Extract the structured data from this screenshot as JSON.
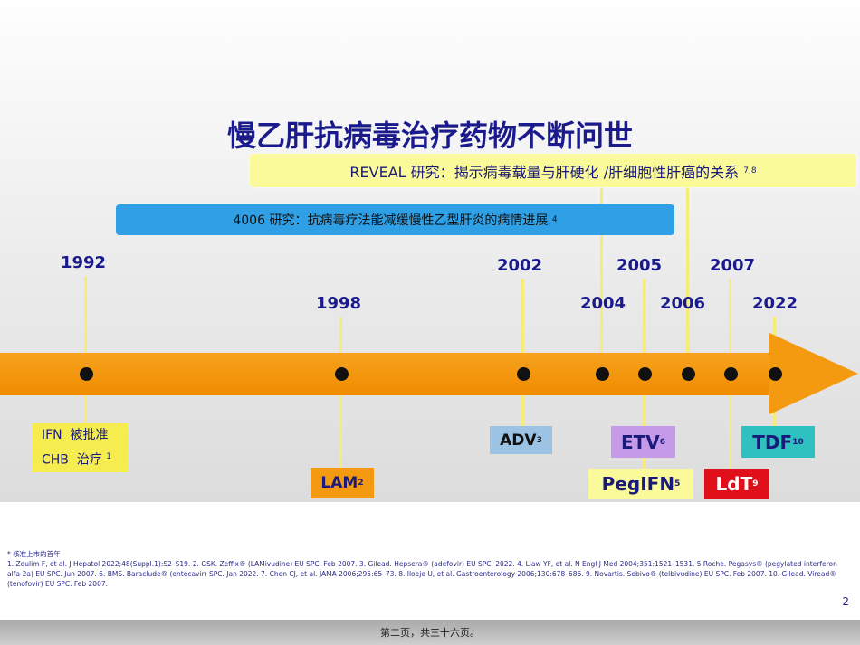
{
  "title": "慢乙肝抗病毒治疗药物不断问世",
  "studies": {
    "reveal": "REVEAL 研究：揭示病毒载量与肝硬化 /肝细胞性肝癌的关系",
    "reveal_sup": "7,8",
    "s4006": "4006 研究：抗病毒疗法能减缓慢性乙型肝炎的病情进展",
    "s4006_sup": "4"
  },
  "years": [
    "1992",
    "1998",
    "2002",
    "2004",
    "2005",
    "2006",
    "2007",
    "2022"
  ],
  "drugs": {
    "ifn_line1": "IFN  被批准",
    "ifn_line2": "CHB  治疗",
    "ifn_sup": "1",
    "lam": "LAM",
    "lam_sup": "2",
    "adv": "ADV",
    "adv_sup": "3",
    "etv": "ETV",
    "etv_sup": "6",
    "peg": "PegIFN",
    "peg_sup": "5",
    "ldt": "LdT",
    "ldt_sup": "9",
    "tdf": "TDF",
    "tdf_sup": "10"
  },
  "colors": {
    "arrow": "#f39a10",
    "title": "#1a1a8c",
    "ldt": "#e0101a",
    "tdf": "#2fc0c0",
    "etv": "#c59ae8",
    "adv": "#9cc3e4"
  },
  "footnote": "* 核准上市的首年",
  "references": "1. Zoulim F, et al. J Hepatol 2022;48(Suppl.1):S2–S19. 2. GSK. Zeffix® (LAMivudine) EU SPC. Feb 2007. 3. Gilead. Hepsera® (adefovir) EU SPC. 2022. 4. Liaw YF, et al. N Engl J Med 2004;351:1521–1531. 5 Roche. Pegasys® (pegylated interferon alfa-2a) EU SPC. Jun 2007. 6. BMS. Baraclude® (entecavir) SPC. Jan 2022. 7. Chen CJ, et al. JAMA 2006;295:65–73. 8. Iloeje U, et al. Gastroenterology 2006;130:678–686. 9. Novartis. Sebivo® (telbivudine) EU SPC. Feb 2007. 10. Gilead. Viread® (tenofovir) EU SPC. Feb 2007.",
  "page_number": "2",
  "footer": "第二页，共三十六页。"
}
